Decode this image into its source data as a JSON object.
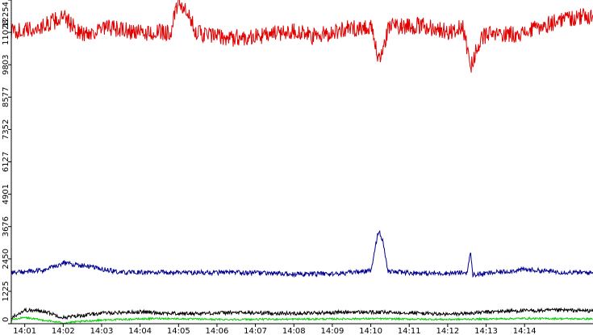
{
  "chart_data": {
    "type": "line",
    "title": "",
    "xlabel": "",
    "ylabel": "",
    "ylim": [
      0,
      12254
    ],
    "y_ticks": [
      "0",
      "1225",
      "2450",
      "3676",
      "4901",
      "6127",
      "7352",
      "8577",
      "9803",
      "11028",
      "12254"
    ],
    "x_ticks": [
      "14:01",
      "14:02",
      "14:03",
      "14:04",
      "14:05",
      "14:06",
      "14:07",
      "14:08",
      "14:09",
      "14:10",
      "14:11",
      "14:12",
      "14:13",
      "14:14"
    ],
    "xlim_minutes": [
      14.65,
      29.78
    ],
    "grid": false,
    "legend": "none",
    "series": [
      {
        "color": "#e00000",
        "keypoints": [
          [
            14.65,
            11050
          ],
          [
            15.3,
            11150
          ],
          [
            16.0,
            11600
          ],
          [
            16.5,
            10950
          ],
          [
            17.2,
            11200
          ],
          [
            18.0,
            11000
          ],
          [
            18.8,
            11050
          ],
          [
            19.0,
            12250
          ],
          [
            19.5,
            11000
          ],
          [
            20.3,
            10800
          ],
          [
            21.2,
            10900
          ],
          [
            22.0,
            11100
          ],
          [
            22.5,
            10850
          ],
          [
            23.3,
            11150
          ],
          [
            24.0,
            11250
          ],
          [
            24.2,
            9950
          ],
          [
            24.5,
            11300
          ],
          [
            25.5,
            11250
          ],
          [
            26.0,
            11050
          ],
          [
            26.4,
            11200
          ],
          [
            26.6,
            9760
          ],
          [
            26.9,
            10900
          ],
          [
            28.0,
            11000
          ],
          [
            29.0,
            11550
          ],
          [
            30.0,
            11700
          ],
          [
            31.0,
            11750
          ],
          [
            32.0,
            11500
          ],
          [
            33.0,
            11350
          ]
        ],
        "noise": 330
      },
      {
        "color": "#000090",
        "keypoints": [
          [
            14.65,
            1930
          ],
          [
            15.5,
            2020
          ],
          [
            16.0,
            2300
          ],
          [
            16.5,
            2200
          ],
          [
            17.5,
            1940
          ],
          [
            19.0,
            1940
          ],
          [
            21.0,
            1930
          ],
          [
            22.0,
            1870
          ],
          [
            23.2,
            1900
          ],
          [
            24.0,
            2000
          ],
          [
            24.2,
            3530
          ],
          [
            24.3,
            3200
          ],
          [
            24.45,
            1970
          ],
          [
            25.5,
            1900
          ],
          [
            26.5,
            1930
          ],
          [
            26.6,
            2700
          ],
          [
            26.65,
            1850
          ],
          [
            28.0,
            2050
          ],
          [
            29.0,
            1950
          ],
          [
            30.0,
            1920
          ],
          [
            31.0,
            1880
          ],
          [
            32.0,
            1850
          ],
          [
            33.0,
            1790
          ]
        ],
        "noise": 90
      },
      {
        "color": "#000000",
        "keypoints": [
          [
            14.65,
            230
          ],
          [
            15.0,
            510
          ],
          [
            15.5,
            480
          ],
          [
            16.0,
            230
          ],
          [
            17.0,
            400
          ],
          [
            18.0,
            450
          ],
          [
            19.0,
            380
          ],
          [
            20.5,
            420
          ],
          [
            22.0,
            390
          ],
          [
            23.5,
            440
          ],
          [
            25.0,
            420
          ],
          [
            26.0,
            350
          ],
          [
            27.5,
            480
          ],
          [
            29.0,
            510
          ],
          [
            30.5,
            470
          ],
          [
            32.0,
            520
          ],
          [
            33.0,
            480
          ]
        ],
        "noise": 70
      },
      {
        "color": "#00cc00",
        "keypoints": [
          [
            14.65,
            150
          ],
          [
            15.0,
            230
          ],
          [
            15.5,
            130
          ],
          [
            16.0,
            30
          ],
          [
            17.0,
            140
          ],
          [
            18.5,
            200
          ],
          [
            20.0,
            160
          ],
          [
            22.0,
            170
          ],
          [
            24.0,
            190
          ],
          [
            26.0,
            160
          ],
          [
            28.0,
            200
          ],
          [
            30.0,
            180
          ],
          [
            32.0,
            190
          ],
          [
            33.0,
            170
          ]
        ],
        "noise": 35
      }
    ]
  }
}
